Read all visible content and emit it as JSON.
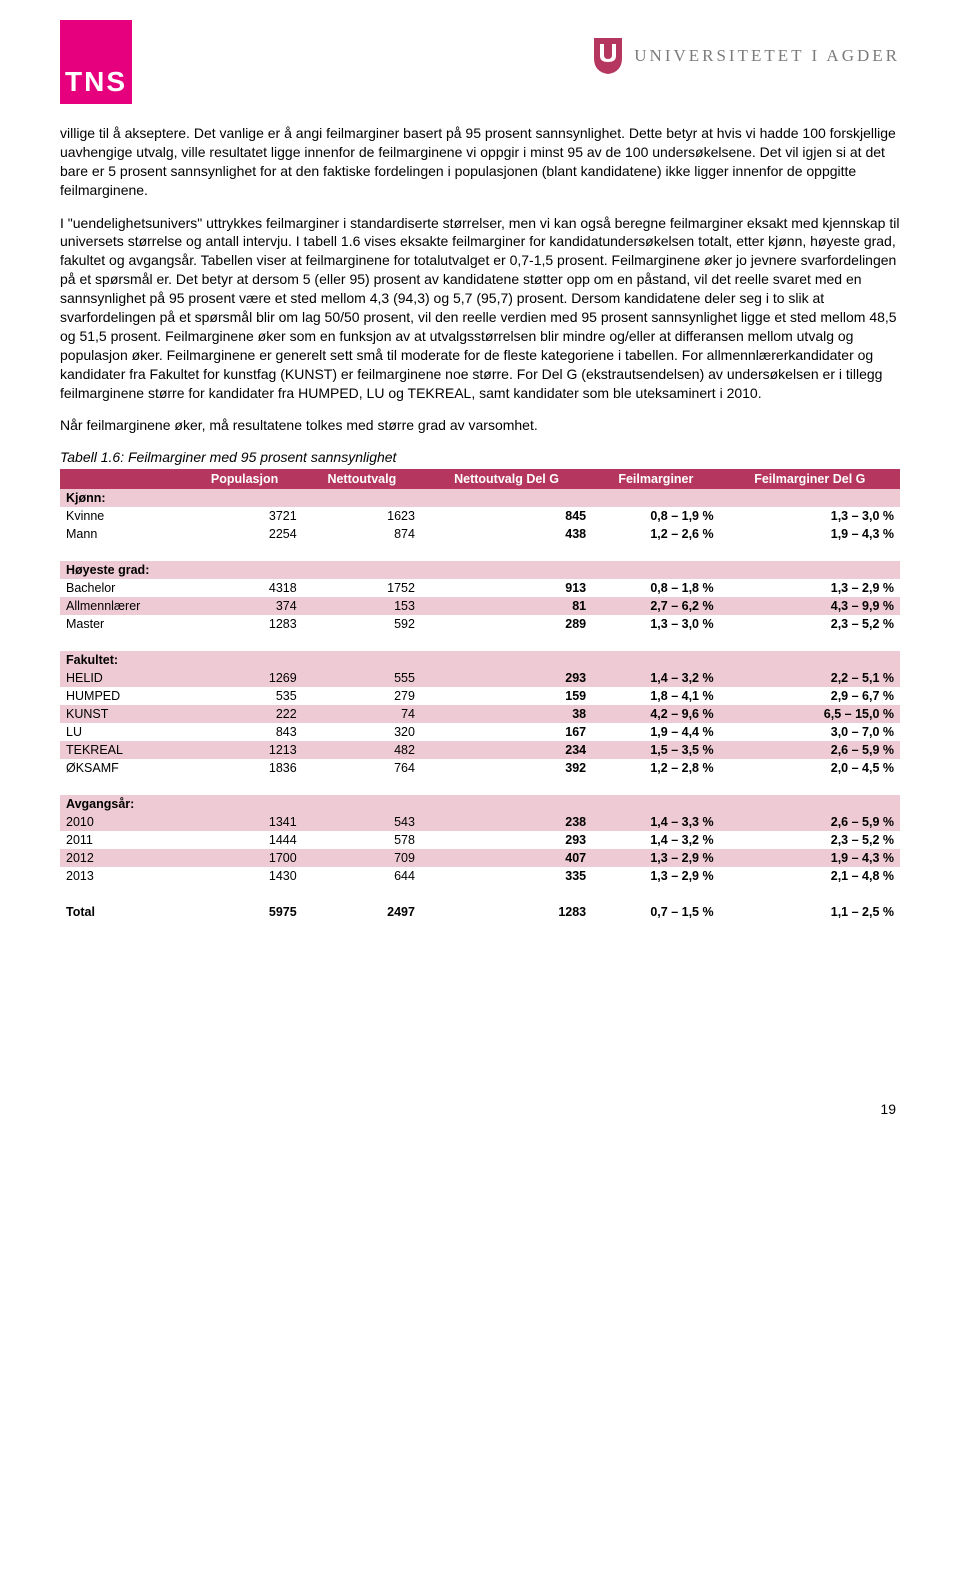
{
  "logo": {
    "tns": "TNS",
    "uia": "UNIVERSITETET I AGDER"
  },
  "paragraphs": {
    "p1": "villige til å akseptere. Det vanlige er å angi feilmarginer basert på 95 prosent sannsynlighet. Dette betyr at hvis vi hadde 100 forskjellige uavhengige utvalg, ville resultatet ligge innenfor de feilmarginene vi oppgir i minst 95 av de 100 undersøkelsene. Det vil igjen si at det bare er 5 prosent sannsynlighet for at den faktiske fordelingen i populasjonen (blant kandidatene) ikke ligger innenfor de oppgitte feilmarginene.",
    "p2": "I \"uendelighetsunivers\" uttrykkes feilmarginer i standardiserte størrelser, men vi kan også beregne feilmarginer eksakt med kjennskap til universets størrelse og antall intervju. I tabell 1.6 vises eksakte feilmarginer for kandidatundersøkelsen totalt, etter kjønn, høyeste grad, fakultet og avgangsår. Tabellen viser at feilmarginene for totalutvalget er 0,7-1,5 prosent. Feilmarginene øker jo jevnere svarfordelingen på et spørsmål er. Det betyr at dersom 5 (eller 95) prosent av kandidatene støtter opp om en påstand, vil det reelle svaret med en sannsynlighet på 95 prosent være et sted mellom 4,3 (94,3) og 5,7 (95,7) prosent. Dersom kandidatene deler seg i to slik at svarfordelingen på et spørsmål blir om lag 50/50 prosent, vil den reelle verdien med 95 prosent sannsynlighet ligge et sted mellom 48,5 og 51,5 prosent. Feilmarginene øker som en funksjon av at utvalgsstørrelsen blir mindre og/eller at differansen mellom utvalg og populasjon øker. Feilmarginene er generelt sett små til moderate for de fleste kategoriene i tabellen. For allmennlærerkandidater og kandidater fra Fakultet for kunstfag (KUNST) er feilmarginene noe større. For Del G (ekstrautsendelsen) av undersøkelsen er i tillegg feilmarginene større for kandidater fra HUMPED, LU og TEKREAL, samt kandidater som ble uteksaminert i 2010.",
    "p3": "Når feilmarginene øker, må resultatene tolkes med større grad av varsomhet."
  },
  "table": {
    "caption": "Tabell 1.6: Feilmarginer med 95 prosent sannsynlighet",
    "columns": [
      "",
      "Populasjon",
      "Nettoutvalg",
      "Nettoutvalg Del G",
      "Feilmarginer",
      "Feilmarginer Del G"
    ],
    "sections": [
      {
        "header": "Kjønn:",
        "rows": [
          {
            "label": "Kvinne",
            "pop": "3721",
            "netto": "1623",
            "nettog": "845",
            "fm": "0,8 – 1,9 %",
            "fmg": "1,3 – 3,0 %",
            "alt": false
          },
          {
            "label": "Mann",
            "pop": "2254",
            "netto": "874",
            "nettog": "438",
            "fm": "1,2 – 2,6 %",
            "fmg": "1,9 – 4,3 %",
            "alt": false
          }
        ]
      },
      {
        "header": "Høyeste grad:",
        "rows": [
          {
            "label": "Bachelor",
            "pop": "4318",
            "netto": "1752",
            "nettog": "913",
            "fm": "0,8 – 1,8 %",
            "fmg": "1,3 – 2,9 %",
            "alt": false
          },
          {
            "label": "Allmennlærer",
            "pop": "374",
            "netto": "153",
            "nettog": "81",
            "fm": "2,7 – 6,2 %",
            "fmg": "4,3 – 9,9 %",
            "alt": true
          },
          {
            "label": "Master",
            "pop": "1283",
            "netto": "592",
            "nettog": "289",
            "fm": "1,3 – 3,0 %",
            "fmg": "2,3 – 5,2 %",
            "alt": false
          }
        ]
      },
      {
        "header": "Fakultet:",
        "rows": [
          {
            "label": "HELID",
            "pop": "1269",
            "netto": "555",
            "nettog": "293",
            "fm": "1,4 – 3,2 %",
            "fmg": "2,2 – 5,1 %",
            "alt": true
          },
          {
            "label": "HUMPED",
            "pop": "535",
            "netto": "279",
            "nettog": "159",
            "fm": "1,8 – 4,1 %",
            "fmg": "2,9 – 6,7 %",
            "alt": false
          },
          {
            "label": "KUNST",
            "pop": "222",
            "netto": "74",
            "nettog": "38",
            "fm": "4,2 – 9,6 %",
            "fmg": "6,5 – 15,0 %",
            "alt": true
          },
          {
            "label": "LU",
            "pop": "843",
            "netto": "320",
            "nettog": "167",
            "fm": "1,9 – 4,4 %",
            "fmg": "3,0 – 7,0 %",
            "alt": false
          },
          {
            "label": "TEKREAL",
            "pop": "1213",
            "netto": "482",
            "nettog": "234",
            "fm": "1,5 – 3,5 %",
            "fmg": "2,6 – 5,9 %",
            "alt": true
          },
          {
            "label": "ØKSAMF",
            "pop": "1836",
            "netto": "764",
            "nettog": "392",
            "fm": "1,2 – 2,8 %",
            "fmg": "2,0 – 4,5 %",
            "alt": false
          }
        ]
      },
      {
        "header": "Avgangsår:",
        "rows": [
          {
            "label": "2010",
            "pop": "1341",
            "netto": "543",
            "nettog": "238",
            "fm": "1,4 – 3,3 %",
            "fmg": "2,6 – 5,9 %",
            "alt": true
          },
          {
            "label": "2011",
            "pop": "1444",
            "netto": "578",
            "nettog": "293",
            "fm": "1,4 – 3,2 %",
            "fmg": "2,3 – 5,2 %",
            "alt": false
          },
          {
            "label": "2012",
            "pop": "1700",
            "netto": "709",
            "nettog": "407",
            "fm": "1,3 – 2,9 %",
            "fmg": "1,9 – 4,3 %",
            "alt": true
          },
          {
            "label": "2013",
            "pop": "1430",
            "netto": "644",
            "nettog": "335",
            "fm": "1,3 – 2,9 %",
            "fmg": "2,1 – 4,8 %",
            "alt": false
          }
        ]
      }
    ],
    "total": {
      "label": "Total",
      "pop": "5975",
      "netto": "2497",
      "nettog": "1283",
      "fm": "0,7 – 1,5 %",
      "fmg": "1,1 – 2,5 %"
    }
  },
  "pageNumber": "19"
}
